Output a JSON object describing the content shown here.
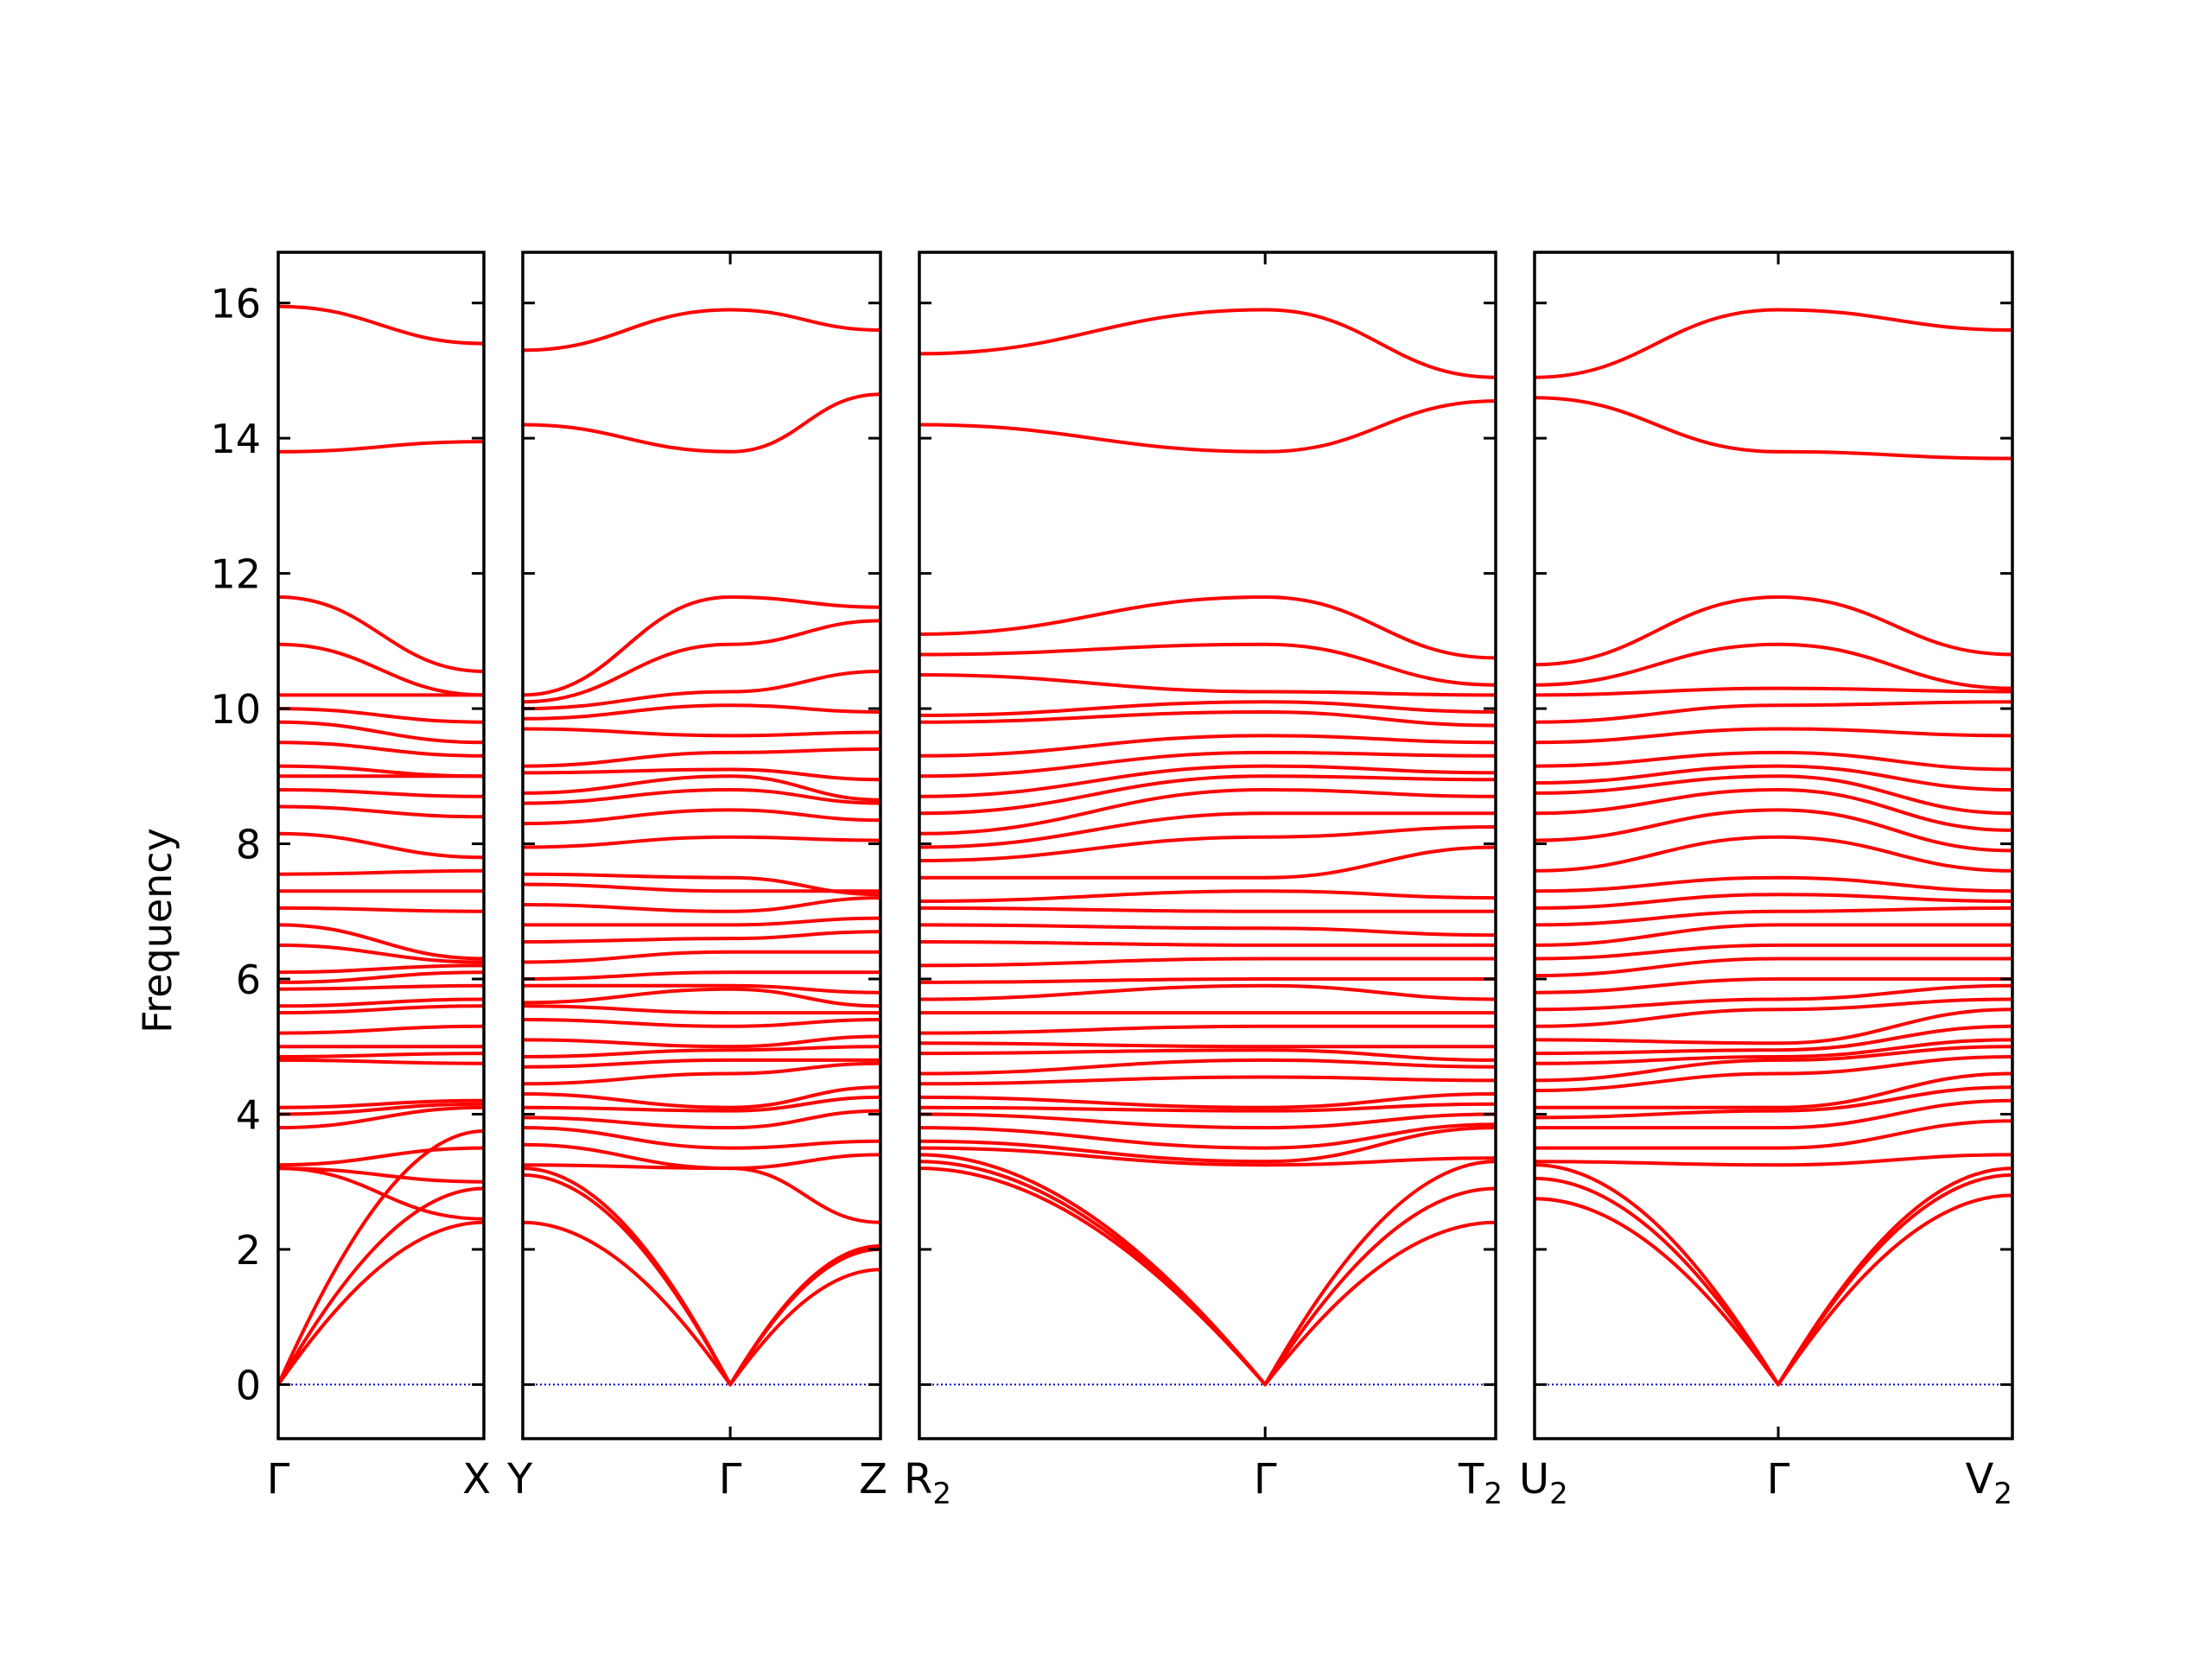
{
  "chart_data": {
    "type": "line",
    "title": "",
    "ylabel": "Frequency",
    "ylim": [
      -0.8,
      16.75
    ],
    "yticks": [
      0,
      2,
      4,
      6,
      8,
      10,
      12,
      14,
      16
    ],
    "ytick_labels": [
      "0",
      "2",
      "4",
      "6",
      "8",
      "10",
      "12",
      "14",
      "16"
    ],
    "grid": false,
    "colors": {
      "bands": "#ff0000",
      "zero_line": "#0000cc",
      "axes": "#000000"
    },
    "panels": [
      {
        "path": [
          "Γ",
          "X"
        ],
        "tick_labels": [
          {
            "main": "Γ",
            "sub": ""
          },
          {
            "main": "X",
            "sub": ""
          }
        ],
        "gamma_positions": [
          0
        ],
        "bands": [
          [
            0,
            2.4
          ],
          [
            0,
            2.9
          ],
          [
            0,
            3.75
          ],
          [
            3.2,
            2.45
          ],
          [
            3.2,
            3.0
          ],
          [
            3.25,
            3.5
          ],
          [
            3.8,
            4.1
          ],
          [
            4.0,
            4.15
          ],
          [
            4.1,
            4.2
          ],
          [
            4.8,
            4.75
          ],
          [
            4.85,
            4.9
          ],
          [
            5.0,
            5.0
          ],
          [
            5.2,
            5.3
          ],
          [
            5.5,
            5.6
          ],
          [
            5.6,
            5.7
          ],
          [
            5.85,
            5.9
          ],
          [
            5.95,
            6.1
          ],
          [
            6.1,
            6.2
          ],
          [
            6.5,
            6.25
          ],
          [
            6.8,
            6.3
          ],
          [
            7.05,
            7.0
          ],
          [
            7.3,
            7.3
          ],
          [
            7.55,
            7.6
          ],
          [
            8.15,
            7.8
          ],
          [
            8.55,
            8.4
          ],
          [
            8.8,
            8.7
          ],
          [
            9.0,
            9.0
          ],
          [
            9.15,
            9.0
          ],
          [
            9.5,
            9.3
          ],
          [
            9.8,
            9.5
          ],
          [
            10.0,
            9.8
          ],
          [
            10.2,
            10.2
          ],
          [
            10.95,
            10.2
          ],
          [
            11.65,
            10.55
          ],
          [
            13.8,
            13.95
          ],
          [
            15.95,
            15.4
          ]
        ]
      },
      {
        "path": [
          "Y",
          "Γ",
          "Z"
        ],
        "tick_labels": [
          {
            "main": "Y",
            "sub": ""
          },
          {
            "main": "Γ",
            "sub": ""
          },
          {
            "main": "Z",
            "sub": ""
          }
        ],
        "gamma_positions": [
          0.58
        ],
        "bands": [
          [
            2.4,
            0,
            1.7
          ],
          [
            3.1,
            0,
            2.0
          ],
          [
            3.2,
            0,
            2.05
          ],
          [
            3.25,
            3.2,
            2.4
          ],
          [
            3.55,
            3.2,
            3.4
          ],
          [
            3.8,
            3.5,
            3.6
          ],
          [
            3.95,
            3.8,
            4.05
          ],
          [
            4.1,
            4.05,
            4.25
          ],
          [
            4.3,
            4.1,
            4.4
          ],
          [
            4.45,
            4.6,
            4.75
          ],
          [
            4.7,
            4.8,
            4.8
          ],
          [
            4.85,
            4.95,
            5.0
          ],
          [
            5.1,
            5.0,
            5.15
          ],
          [
            5.4,
            5.3,
            5.4
          ],
          [
            5.6,
            5.5,
            5.5
          ],
          [
            5.65,
            5.85,
            5.6
          ],
          [
            5.9,
            5.9,
            5.8
          ],
          [
            6.0,
            6.1,
            6.1
          ],
          [
            6.25,
            6.4,
            6.4
          ],
          [
            6.55,
            6.6,
            6.7
          ],
          [
            6.8,
            6.8,
            6.9
          ],
          [
            7.1,
            7.0,
            7.2
          ],
          [
            7.4,
            7.3,
            7.3
          ],
          [
            7.55,
            7.5,
            7.25
          ],
          [
            7.95,
            8.1,
            8.05
          ],
          [
            8.3,
            8.5,
            8.35
          ],
          [
            8.6,
            8.8,
            8.6
          ],
          [
            8.75,
            9.0,
            8.65
          ],
          [
            9.05,
            9.1,
            8.95
          ],
          [
            9.15,
            9.35,
            9.4
          ],
          [
            9.7,
            9.6,
            9.65
          ],
          [
            9.85,
            10.05,
            9.95
          ],
          [
            10.0,
            10.25,
            10.55
          ],
          [
            10.1,
            10.95,
            11.3
          ],
          [
            10.2,
            11.65,
            11.5
          ],
          [
            14.2,
            13.8,
            14.65
          ],
          [
            15.3,
            15.9,
            15.6
          ]
        ]
      },
      {
        "path": [
          "R2",
          "Γ",
          "T2"
        ],
        "tick_labels": [
          {
            "main": "R",
            "sub": "2"
          },
          {
            "main": "Γ",
            "sub": ""
          },
          {
            "main": "T",
            "sub": "2"
          }
        ],
        "gamma_positions": [
          0.6
        ],
        "bands": [
          [
            3.2,
            0,
            2.4
          ],
          [
            3.3,
            0,
            2.9
          ],
          [
            3.4,
            0,
            3.3
          ],
          [
            3.5,
            3.25,
            3.35
          ],
          [
            3.6,
            3.3,
            3.8
          ],
          [
            3.8,
            3.5,
            3.85
          ],
          [
            4.0,
            3.8,
            4.0
          ],
          [
            4.1,
            4.05,
            4.15
          ],
          [
            4.25,
            4.1,
            4.3
          ],
          [
            4.45,
            4.55,
            4.5
          ],
          [
            4.6,
            4.8,
            4.7
          ],
          [
            4.9,
            4.95,
            4.8
          ],
          [
            5.05,
            5.0,
            5.0
          ],
          [
            5.2,
            5.3,
            5.3
          ],
          [
            5.5,
            5.5,
            5.5
          ],
          [
            5.7,
            5.9,
            5.7
          ],
          [
            5.95,
            6.0,
            6.0
          ],
          [
            6.2,
            6.3,
            6.3
          ],
          [
            6.55,
            6.5,
            6.5
          ],
          [
            6.8,
            6.75,
            6.65
          ],
          [
            7.05,
            7.0,
            7.0
          ],
          [
            7.15,
            7.3,
            7.2
          ],
          [
            7.5,
            7.5,
            7.95
          ],
          [
            7.75,
            8.1,
            8.25
          ],
          [
            7.95,
            8.45,
            8.45
          ],
          [
            8.15,
            8.8,
            8.7
          ],
          [
            8.45,
            9.0,
            8.95
          ],
          [
            8.7,
            9.15,
            9.05
          ],
          [
            9.0,
            9.35,
            9.3
          ],
          [
            9.3,
            9.6,
            9.5
          ],
          [
            9.8,
            9.95,
            9.75
          ],
          [
            9.9,
            10.1,
            9.95
          ],
          [
            10.5,
            10.25,
            10.2
          ],
          [
            10.8,
            10.95,
            10.35
          ],
          [
            11.1,
            11.65,
            10.75
          ],
          [
            14.2,
            13.8,
            14.55
          ],
          [
            15.25,
            15.9,
            14.9
          ]
        ]
      },
      {
        "path": [
          "U2",
          "Γ",
          "V2"
        ],
        "tick_labels": [
          {
            "main": "U",
            "sub": "2"
          },
          {
            "main": "Γ",
            "sub": ""
          },
          {
            "main": "V",
            "sub": "2"
          }
        ],
        "gamma_positions": [
          0.51
        ],
        "bands": [
          [
            2.75,
            0,
            2.8
          ],
          [
            3.05,
            0,
            3.1
          ],
          [
            3.25,
            0,
            3.2
          ],
          [
            3.3,
            3.25,
            3.4
          ],
          [
            3.5,
            3.5,
            3.9
          ],
          [
            3.8,
            3.8,
            4.2
          ],
          [
            3.95,
            4.05,
            4.4
          ],
          [
            4.1,
            4.1,
            4.6
          ],
          [
            4.35,
            4.6,
            4.85
          ],
          [
            4.5,
            4.8,
            5.0
          ],
          [
            4.75,
            4.85,
            5.1
          ],
          [
            4.9,
            4.95,
            5.3
          ],
          [
            5.1,
            5.05,
            5.55
          ],
          [
            5.3,
            5.55,
            5.7
          ],
          [
            5.55,
            5.7,
            5.9
          ],
          [
            5.8,
            6.0,
            6.0
          ],
          [
            6.05,
            6.3,
            6.3
          ],
          [
            6.3,
            6.5,
            6.5
          ],
          [
            6.5,
            6.8,
            6.8
          ],
          [
            6.8,
            7.0,
            7.05
          ],
          [
            7.05,
            7.25,
            7.15
          ],
          [
            7.3,
            7.5,
            7.3
          ],
          [
            7.6,
            8.1,
            7.6
          ],
          [
            8.05,
            8.5,
            7.9
          ],
          [
            8.45,
            8.8,
            8.2
          ],
          [
            8.75,
            9.0,
            8.45
          ],
          [
            8.9,
            9.15,
            8.8
          ],
          [
            9.15,
            9.35,
            9.1
          ],
          [
            9.5,
            9.7,
            9.6
          ],
          [
            9.8,
            10.05,
            10.1
          ],
          [
            10.2,
            10.3,
            10.25
          ],
          [
            10.35,
            10.95,
            10.3
          ],
          [
            10.65,
            11.65,
            10.8
          ],
          [
            14.6,
            13.8,
            13.7
          ],
          [
            14.9,
            15.9,
            15.6
          ]
        ]
      }
    ]
  }
}
